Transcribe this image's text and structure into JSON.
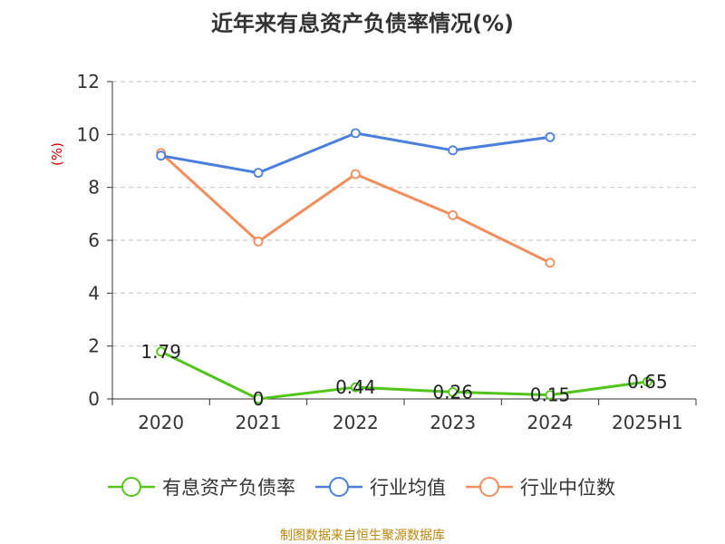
{
  "chart_data": {
    "type": "line",
    "title": "近年来有息资产负债率情况(%)",
    "ylabel": "(%)",
    "xlabel": "",
    "categories": [
      "2020",
      "2021",
      "2022",
      "2023",
      "2024",
      "2025H1"
    ],
    "ylim": [
      0,
      12
    ],
    "yticks": [
      0,
      2,
      4,
      6,
      8,
      10,
      12
    ],
    "grid": true,
    "legend_position": "bottom",
    "series": [
      {
        "name": "有息资产负债率",
        "color": "#52c41a",
        "values": [
          1.79,
          0,
          0.44,
          0.26,
          0.15,
          0.65
        ],
        "labels": [
          "1.79",
          "0",
          "0.44",
          "0.26",
          "0.15",
          "0.65"
        ]
      },
      {
        "name": "行业均值",
        "color": "#4a7fdc",
        "values": [
          9.2,
          8.55,
          10.05,
          9.4,
          9.9,
          null
        ]
      },
      {
        "name": "行业中位数",
        "color": "#f28e5c",
        "values": [
          9.3,
          5.95,
          8.5,
          6.95,
          5.15,
          null
        ]
      }
    ]
  },
  "source": "制图数据来自恒生聚源数据库"
}
